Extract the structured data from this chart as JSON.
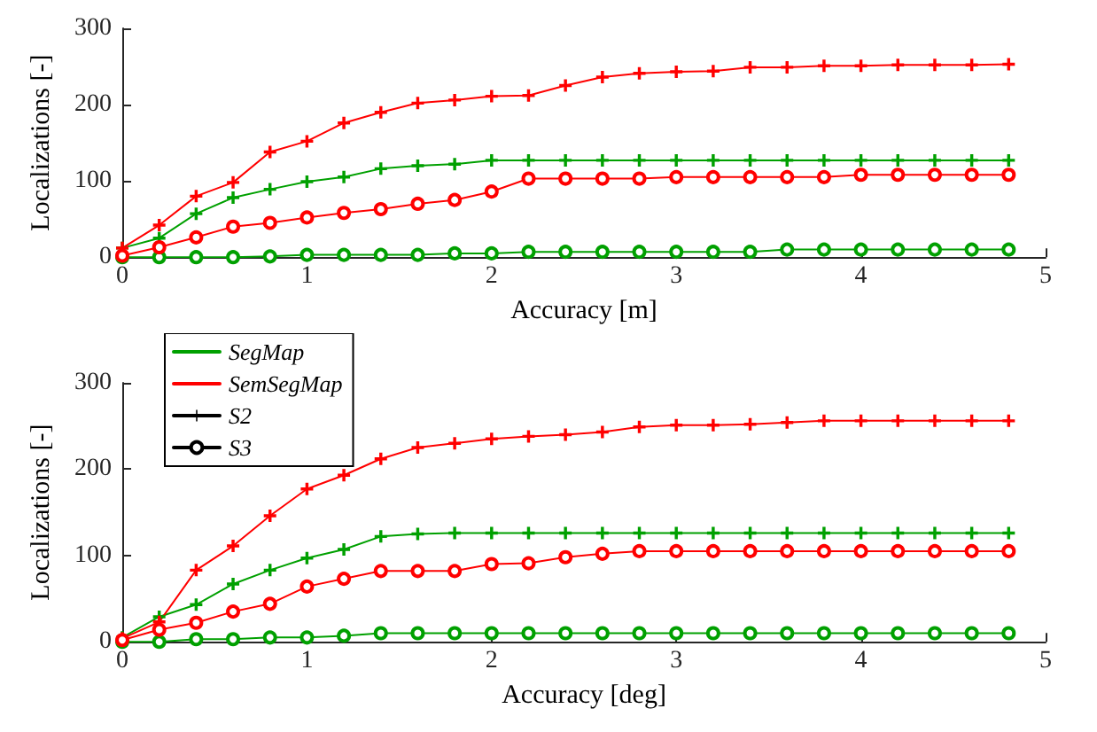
{
  "chart_data": [
    {
      "type": "line",
      "xlabel": "Accuracy [m]",
      "ylabel": "Localizations [-]",
      "x": [
        0,
        0.2,
        0.4,
        0.6,
        0.8,
        1,
        1.2,
        1.4,
        1.6,
        1.8,
        2,
        2.2,
        2.4,
        2.6,
        2.8,
        3,
        3.2,
        3.4,
        3.6,
        3.8,
        4,
        4.2,
        4.4,
        4.6,
        4.8
      ],
      "xlim": [
        0,
        5
      ],
      "xticks": [
        0,
        1,
        2,
        3,
        4,
        5
      ],
      "ylim": [
        0,
        300
      ],
      "yticks": [
        0,
        100,
        200,
        300
      ],
      "grid": false,
      "line_style": "solid",
      "series": [
        {
          "color": "#00a000",
          "marker": "cross",
          "values": [
            12,
            25,
            57,
            78,
            89,
            99,
            105,
            116,
            120,
            122,
            127,
            127,
            127,
            127,
            127,
            127,
            127,
            127,
            127,
            127,
            127,
            127,
            127,
            127,
            127
          ]
        },
        {
          "color": "#ff0000",
          "marker": "cross",
          "values": [
            12,
            42,
            80,
            98,
            138,
            152,
            176,
            190,
            202,
            206,
            211,
            212,
            225,
            236,
            241,
            243,
            244,
            249,
            249,
            251,
            251,
            252,
            252,
            252,
            253
          ]
        },
        {
          "color": "#00a000",
          "marker": "circle",
          "values": [
            0,
            0,
            0,
            0,
            1,
            3,
            3,
            3,
            3,
            5,
            5,
            7,
            7,
            7,
            7,
            7,
            7,
            7,
            10,
            10,
            10,
            10,
            10,
            10,
            10
          ]
        },
        {
          "color": "#ff0000",
          "marker": "circle",
          "values": [
            2,
            13,
            26,
            40,
            45,
            52,
            58,
            63,
            70,
            75,
            86,
            103,
            103,
            103,
            103,
            105,
            105,
            105,
            105,
            105,
            108,
            108,
            108,
            108,
            108
          ]
        }
      ]
    },
    {
      "type": "line",
      "xlabel": "Accuracy [deg]",
      "ylabel": "Localizations [-]",
      "x": [
        0,
        0.2,
        0.4,
        0.6,
        0.8,
        1,
        1.2,
        1.4,
        1.6,
        1.8,
        2,
        2.2,
        2.4,
        2.6,
        2.8,
        3,
        3.2,
        3.4,
        3.6,
        3.8,
        4,
        4.2,
        4.4,
        4.6,
        4.8
      ],
      "xlim": [
        0,
        5
      ],
      "xticks": [
        0,
        1,
        2,
        3,
        4,
        5
      ],
      "ylim": [
        0,
        300
      ],
      "yticks": [
        0,
        100,
        200,
        300
      ],
      "grid": false,
      "line_style": "solid",
      "legend": "top left",
      "series": [
        {
          "name": "SegMap",
          "color": "#00a000",
          "marker": "cross",
          "values": [
            5,
            29,
            43,
            67,
            83,
            97,
            107,
            122,
            125,
            126,
            126,
            126,
            126,
            126,
            126,
            126,
            126,
            126,
            126,
            126,
            126,
            126,
            126,
            126,
            126
          ]
        },
        {
          "name": "SemSegMap",
          "color": "#ff0000",
          "marker": "cross",
          "values": [
            4,
            23,
            83,
            111,
            146,
            177,
            193,
            212,
            225,
            230,
            235,
            238,
            240,
            243,
            249,
            251,
            251,
            252,
            254,
            256,
            256,
            256,
            256,
            256,
            256
          ]
        },
        {
          "color": "#00a000",
          "marker": "circle",
          "values": [
            0,
            0,
            3,
            3,
            5,
            5,
            7,
            10,
            10,
            10,
            10,
            10,
            10,
            10,
            10,
            10,
            10,
            10,
            10,
            10,
            10,
            10,
            10,
            10,
            10
          ]
        },
        {
          "color": "#ff0000",
          "marker": "circle",
          "values": [
            2,
            14,
            22,
            35,
            44,
            64,
            73,
            82,
            82,
            82,
            90,
            91,
            98,
            102,
            105,
            105,
            105,
            105,
            105,
            105,
            105,
            105,
            105,
            105,
            105
          ]
        },
        {
          "name": "S2",
          "color": "#000000",
          "marker": "cross",
          "values": [
            null,
            null,
            null,
            null,
            null,
            null,
            null,
            null,
            null,
            null,
            null,
            null,
            null,
            null,
            null,
            null,
            null,
            null,
            null,
            null,
            null,
            null,
            null,
            null,
            null
          ]
        },
        {
          "name": "S3",
          "color": "#000000",
          "marker": "circle",
          "values": [
            null,
            null,
            null,
            null,
            null,
            null,
            null,
            null,
            null,
            null,
            null,
            null,
            null,
            null,
            null,
            null,
            null,
            null,
            null,
            null,
            null,
            null,
            null,
            null,
            null
          ]
        }
      ]
    }
  ]
}
